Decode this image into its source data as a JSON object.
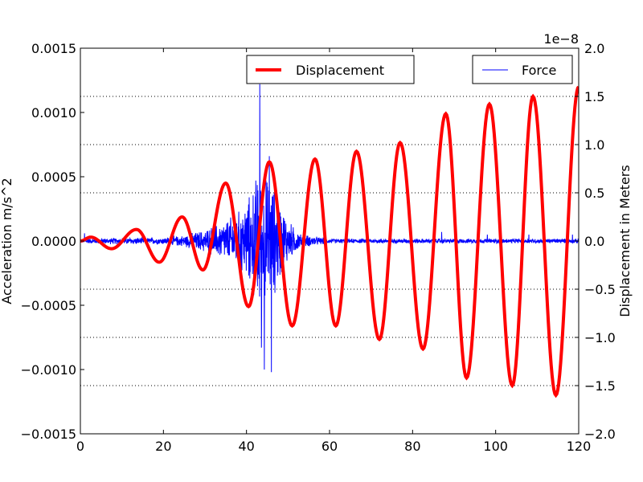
{
  "chart_data": {
    "type": "line",
    "xlim": [
      0,
      120
    ],
    "x_ticks": [
      "0",
      "20",
      "40",
      "60",
      "80",
      "100",
      "120"
    ],
    "left_axis": {
      "label": "Acceleration m/s^2",
      "ylim": [
        -0.0015,
        0.0015
      ],
      "ticks": [
        "−0.0015",
        "−0.0010",
        "−0.0005",
        "0.0000",
        "0.0005",
        "0.0010",
        "0.0015"
      ]
    },
    "right_axis": {
      "label": "Displacement in Meters",
      "offset_text": "1e−8",
      "ylim": [
        -2.0,
        2.0
      ],
      "ticks": [
        "−2.0",
        "−1.5",
        "−1.0",
        "−0.5",
        "0.0",
        "0.5",
        "1.0",
        "1.5",
        "2.0"
      ]
    },
    "grid": "horizontal dotted lines at right-axis ticks",
    "legends": [
      {
        "name": "Displacement",
        "color": "#ff0000",
        "placement": "top-center"
      },
      {
        "name": "Force",
        "color": "#0000ff",
        "placement": "top-right"
      }
    ],
    "series": [
      {
        "name": "Displacement",
        "axis": "right",
        "color": "#ff0000",
        "units": "1e-8 m",
        "description": "Oscillation with growing amplitude, period about 10.5",
        "extrema": [
          {
            "x": 2.5,
            "y": 0.04
          },
          {
            "x": 7.5,
            "y": -0.08
          },
          {
            "x": 13.5,
            "y": 0.12
          },
          {
            "x": 19,
            "y": -0.22
          },
          {
            "x": 24.5,
            "y": 0.25
          },
          {
            "x": 29.5,
            "y": -0.3
          },
          {
            "x": 35,
            "y": 0.6
          },
          {
            "x": 40.5,
            "y": -0.68
          },
          {
            "x": 45.5,
            "y": 0.82
          },
          {
            "x": 51,
            "y": -0.88
          },
          {
            "x": 56.5,
            "y": 0.85
          },
          {
            "x": 61.5,
            "y": -0.88
          },
          {
            "x": 66.5,
            "y": 0.93
          },
          {
            "x": 72,
            "y": -1.02
          },
          {
            "x": 77,
            "y": 1.02
          },
          {
            "x": 82.5,
            "y": -1.12
          },
          {
            "x": 88,
            "y": 1.32
          },
          {
            "x": 93,
            "y": -1.42
          },
          {
            "x": 98.5,
            "y": 1.42
          },
          {
            "x": 104,
            "y": -1.5
          },
          {
            "x": 109,
            "y": 1.5
          },
          {
            "x": 114.5,
            "y": -1.6
          },
          {
            "x": 120,
            "y": 1.6
          }
        ]
      },
      {
        "name": "Force",
        "axis": "left",
        "color": "#0000ff",
        "units": "m/s^2",
        "description": "Noisy acceleration signal, burst between x≈30 and x≈52",
        "envelope": [
          {
            "x": 0,
            "amp": 2e-05
          },
          {
            "x": 10,
            "amp": 3e-05
          },
          {
            "x": 20,
            "amp": 3e-05
          },
          {
            "x": 25,
            "amp": 5e-05
          },
          {
            "x": 30,
            "amp": 0.0001
          },
          {
            "x": 35,
            "amp": 0.00018
          },
          {
            "x": 38,
            "amp": 0.00025
          },
          {
            "x": 41,
            "amp": 0.0004
          },
          {
            "x": 43,
            "amp": 0.00065
          },
          {
            "x": 45,
            "amp": 0.00055
          },
          {
            "x": 47,
            "amp": 0.00045
          },
          {
            "x": 50,
            "amp": 0.00018
          },
          {
            "x": 53,
            "amp": 6e-05
          },
          {
            "x": 60,
            "amp": 2e-05
          },
          {
            "x": 120,
            "amp": 2e-05
          }
        ],
        "spikes": [
          {
            "x": 43.2,
            "y": 0.00122
          },
          {
            "x": 43.6,
            "y": -0.00083
          },
          {
            "x": 44.3,
            "y": -0.001
          },
          {
            "x": 46.0,
            "y": -0.00102
          },
          {
            "x": 45.5,
            "y": 0.00066
          },
          {
            "x": 1.0,
            "y": 6e-05
          },
          {
            "x": 11.0,
            "y": 5e-05
          },
          {
            "x": 87.0,
            "y": 7e-05
          },
          {
            "x": 98.0,
            "y": 5e-05
          },
          {
            "x": 108.0,
            "y": 5e-05
          },
          {
            "x": 118.5,
            "y": 5e-05
          }
        ]
      }
    ]
  }
}
